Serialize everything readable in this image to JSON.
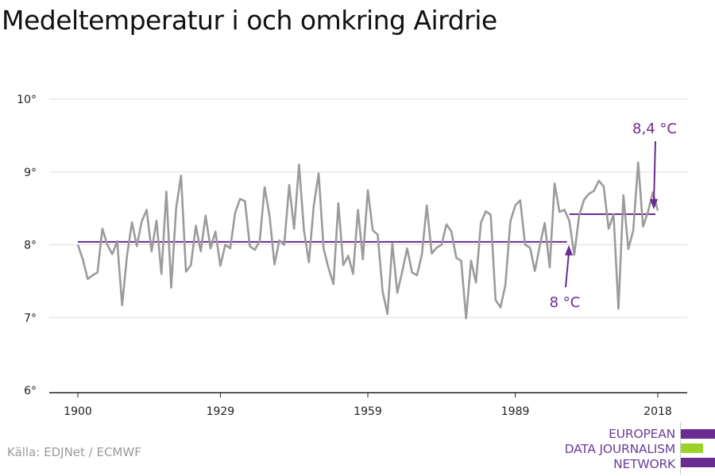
{
  "title": "Medeltemperatur i och omkring Airdrie",
  "source": "Källa: EDJNet / ECMWF",
  "logo": {
    "lines": [
      "EUROPEAN",
      "DATA JOURNALISM",
      "NETWORK"
    ],
    "colors": [
      "#6a2c91",
      "#9bd32a",
      "#6a2c91"
    ]
  },
  "colors": {
    "series": "#9b9b9b",
    "accent": "#6a2c91",
    "grid": "#dddddd",
    "axis": "#222222"
  },
  "chart_data": {
    "type": "line",
    "title": "Medeltemperatur i och omkring Airdrie",
    "xlabel": "",
    "ylabel": "",
    "xlim": [
      1900,
      2018
    ],
    "ylim": [
      6,
      10
    ],
    "x_ticks": [
      1900,
      1929,
      1959,
      1989,
      2018
    ],
    "y_ticks": [
      6,
      7,
      8,
      9,
      10
    ],
    "y_tick_labels": [
      "6°",
      "7°",
      "8°",
      "9°",
      "10°"
    ],
    "grid": true,
    "legend": "none",
    "series": [
      {
        "x": [
          1900,
          1901,
          1902,
          1903,
          1904,
          1905,
          1906,
          1907,
          1908,
          1909,
          1910,
          1911,
          1912,
          1913,
          1914,
          1915,
          1916,
          1917,
          1918,
          1919,
          1920,
          1921,
          1922,
          1923,
          1924,
          1925,
          1926,
          1927,
          1928,
          1929,
          1930,
          1931,
          1932,
          1933,
          1934,
          1935,
          1936,
          1937,
          1938,
          1939,
          1940,
          1941,
          1942,
          1943,
          1944,
          1945,
          1946,
          1947,
          1948,
          1949,
          1950,
          1951,
          1952,
          1953,
          1954,
          1955,
          1956,
          1957,
          1958,
          1959,
          1960,
          1961,
          1962,
          1963,
          1964,
          1965,
          1966,
          1967,
          1968,
          1969,
          1970,
          1971,
          1972,
          1973,
          1974,
          1975,
          1976,
          1977,
          1978,
          1979,
          1980,
          1981,
          1982,
          1983,
          1984,
          1985,
          1986,
          1987,
          1988,
          1989,
          1990,
          1991,
          1992,
          1993,
          1994,
          1995,
          1996,
          1997,
          1998,
          1999,
          2000,
          2001,
          2002,
          2003,
          2004,
          2005,
          2006,
          2007,
          2008,
          2009,
          2010,
          2011,
          2012,
          2013,
          2014,
          2015,
          2016,
          2017,
          2018
        ],
        "values": [
          8.0,
          7.8,
          7.53,
          7.58,
          7.62,
          8.22,
          8.0,
          7.87,
          8.05,
          7.17,
          7.85,
          8.31,
          7.98,
          8.32,
          8.48,
          7.91,
          8.33,
          7.6,
          8.73,
          7.41,
          8.5,
          8.95,
          7.63,
          7.72,
          8.26,
          7.91,
          8.4,
          7.95,
          8.18,
          7.71,
          8.0,
          7.95,
          8.44,
          8.63,
          8.6,
          7.98,
          7.93,
          8.05,
          8.79,
          8.4,
          7.73,
          8.06,
          8.0,
          8.82,
          8.22,
          9.1,
          8.2,
          7.76,
          8.53,
          8.98,
          7.95,
          7.68,
          7.46,
          8.57,
          7.72,
          7.85,
          7.6,
          8.48,
          7.8,
          8.75,
          8.2,
          8.14,
          7.36,
          7.05,
          8.02,
          7.34,
          7.63,
          7.95,
          7.62,
          7.58,
          7.87,
          8.54,
          7.88,
          7.96,
          8.0,
          8.28,
          8.18,
          7.82,
          7.78,
          6.99,
          7.78,
          7.48,
          8.3,
          8.46,
          8.41,
          7.24,
          7.14,
          7.45,
          8.32,
          8.54,
          8.61,
          8.0,
          7.96,
          7.64,
          7.99,
          8.3,
          7.69,
          8.84,
          8.45,
          8.48,
          8.33,
          7.86,
          8.4,
          8.62,
          8.7,
          8.74,
          8.88,
          8.8,
          8.22,
          8.42,
          7.12,
          8.68,
          7.94,
          8.2,
          9.13,
          8.25,
          8.45,
          8.72,
          8.47
        ]
      }
    ],
    "reference_lines": [
      {
        "label": "8 °C",
        "value": 8.04,
        "x_start": 1900,
        "x_end": 2000
      },
      {
        "label": "8,4 °C",
        "value": 8.42,
        "x_start": 2000,
        "x_end": 2018
      }
    ]
  }
}
